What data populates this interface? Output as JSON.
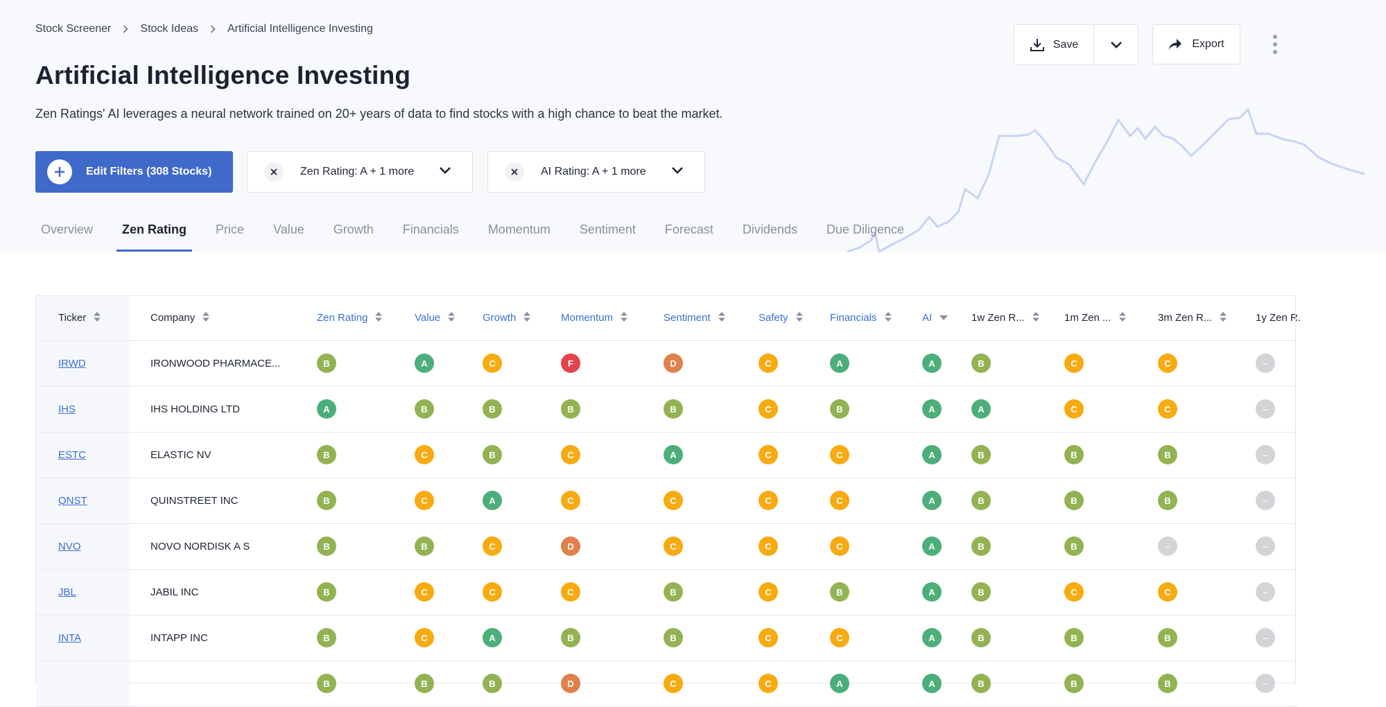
{
  "breadcrumb": [
    "Stock Screener",
    "Stock Ideas",
    "Artificial Intelligence Investing"
  ],
  "title": "Artificial Intelligence Investing",
  "description": "Zen Ratings' AI leverages a neural network trained on 20+ years of data to find stocks with a high chance to beat the market.",
  "actions": {
    "save_label": "Save",
    "export_label": "Export"
  },
  "edit_filters_label": "Edit Filters (308 Stocks)",
  "filter_chips": [
    "Zen Rating: A + 1 more",
    "AI Rating: A + 1 more"
  ],
  "tabs": [
    "Overview",
    "Zen Rating",
    "Price",
    "Value",
    "Growth",
    "Financials",
    "Momentum",
    "Sentiment",
    "Forecast",
    "Dividends",
    "Due Diligence"
  ],
  "active_tab": "Zen Rating",
  "colors": {
    "accent": "#4069cc",
    "link": "#3a6ed4",
    "grade_A": "#4caf7a",
    "grade_B": "#93b353",
    "grade_C": "#f7ab11",
    "grade_D": "#e0804a",
    "grade_F": "#e2434c",
    "grade_none": "#d3d4d8",
    "chart_line": "#c5d4f3"
  },
  "table": {
    "columns": [
      "Ticker",
      "Company",
      "Zen Rating",
      "Value",
      "Growth",
      "Momentum",
      "Sentiment",
      "Safety",
      "Financials",
      "AI",
      "1w Zen R...",
      "1m Zen ...",
      "3m Zen R...",
      "1y Zen R."
    ],
    "rows": [
      {
        "ticker": "IRWD",
        "company": "IRONWOOD PHARMACE...",
        "grades": [
          "B",
          "A",
          "C",
          "F",
          "D",
          "C",
          "A",
          "A",
          "B",
          "C",
          "C",
          "–"
        ]
      },
      {
        "ticker": "IHS",
        "company": "IHS HOLDING LTD",
        "grades": [
          "A",
          "B",
          "B",
          "B",
          "B",
          "C",
          "B",
          "A",
          "A",
          "C",
          "C",
          "–"
        ]
      },
      {
        "ticker": "ESTC",
        "company": "ELASTIC NV",
        "grades": [
          "B",
          "C",
          "B",
          "C",
          "A",
          "C",
          "C",
          "A",
          "B",
          "B",
          "B",
          "–"
        ]
      },
      {
        "ticker": "QNST",
        "company": "QUINSTREET INC",
        "grades": [
          "B",
          "C",
          "A",
          "C",
          "C",
          "C",
          "C",
          "A",
          "B",
          "B",
          "B",
          "–"
        ]
      },
      {
        "ticker": "NVO",
        "company": "NOVO NORDISK A S",
        "grades": [
          "B",
          "B",
          "C",
          "D",
          "C",
          "C",
          "C",
          "A",
          "B",
          "B",
          "–",
          "–"
        ]
      },
      {
        "ticker": "JBL",
        "company": "JABIL INC",
        "grades": [
          "B",
          "C",
          "C",
          "C",
          "B",
          "C",
          "B",
          "A",
          "B",
          "C",
          "C",
          "–"
        ]
      },
      {
        "ticker": "INTA",
        "company": "INTAPP INC",
        "grades": [
          "B",
          "C",
          "A",
          "B",
          "B",
          "C",
          "C",
          "A",
          "B",
          "B",
          "B",
          "–"
        ]
      },
      {
        "ticker": "",
        "company": "",
        "grades": [
          "B",
          "B",
          "B",
          "D",
          "C",
          "C",
          "A",
          "A",
          "B",
          "B",
          "B",
          "–"
        ]
      }
    ]
  }
}
